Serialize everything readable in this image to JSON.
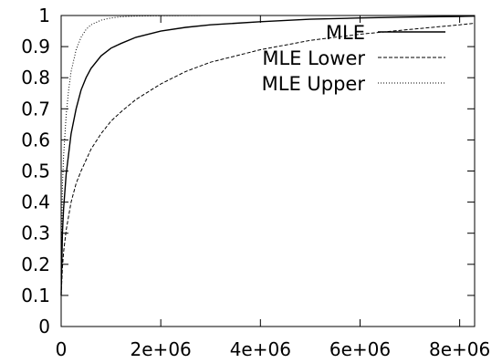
{
  "chart_data": {
    "type": "line",
    "title": "",
    "xlabel": "",
    "ylabel": "",
    "xlim": [
      0,
      8300000
    ],
    "ylim": [
      0,
      1
    ],
    "grid": false,
    "legend_position": "top-right",
    "x_ticks": [
      0,
      2000000,
      4000000,
      6000000,
      8000000
    ],
    "x_tick_labels": [
      "0",
      "2e+06",
      "4e+06",
      "6e+06",
      "8e+06"
    ],
    "y_ticks": [
      0,
      0.1,
      0.2,
      0.3,
      0.4,
      0.5,
      0.6,
      0.7,
      0.8,
      0.9,
      1
    ],
    "y_tick_labels": [
      "0",
      "0.1",
      "0.2",
      "0.3",
      "0.4",
      "0.5",
      "0.6",
      "0.7",
      "0.8",
      "0.9",
      "1"
    ],
    "series": [
      {
        "name": "MLE",
        "style": "solid",
        "x": [
          0,
          25000,
          50000,
          100000,
          200000,
          300000,
          400000,
          500000,
          600000,
          800000,
          1000000,
          1200000,
          1500000,
          2000000,
          2500000,
          3000000,
          4000000,
          5000000,
          6000000,
          7000000,
          8000000,
          8300000
        ],
        "y": [
          0.1,
          0.3,
          0.38,
          0.49,
          0.62,
          0.7,
          0.76,
          0.8,
          0.83,
          0.87,
          0.895,
          0.91,
          0.93,
          0.95,
          0.962,
          0.97,
          0.98,
          0.988,
          0.992,
          0.995,
          0.997,
          0.998
        ]
      },
      {
        "name": "MLE Lower",
        "style": "dashed",
        "x": [
          0,
          25000,
          50000,
          100000,
          200000,
          300000,
          400000,
          600000,
          800000,
          1000000,
          1200000,
          1500000,
          2000000,
          2500000,
          3000000,
          4000000,
          5000000,
          6000000,
          7000000,
          8000000,
          8300000
        ],
        "y": [
          0.1,
          0.19,
          0.24,
          0.31,
          0.4,
          0.46,
          0.5,
          0.57,
          0.62,
          0.66,
          0.69,
          0.73,
          0.78,
          0.82,
          0.85,
          0.89,
          0.92,
          0.94,
          0.955,
          0.97,
          0.975
        ]
      },
      {
        "name": "MLE Upper",
        "style": "dotted",
        "x": [
          0,
          25000,
          50000,
          100000,
          150000,
          200000,
          300000,
          400000,
          500000,
          600000,
          800000,
          1000000,
          1200000,
          1500000,
          2000000,
          3000000,
          4000000,
          6000000,
          8000000,
          8300000
        ],
        "y": [
          0.1,
          0.45,
          0.55,
          0.68,
          0.76,
          0.82,
          0.89,
          0.93,
          0.955,
          0.97,
          0.985,
          0.992,
          0.996,
          0.998,
          0.999,
          1,
          1,
          1,
          1,
          1
        ]
      }
    ]
  }
}
